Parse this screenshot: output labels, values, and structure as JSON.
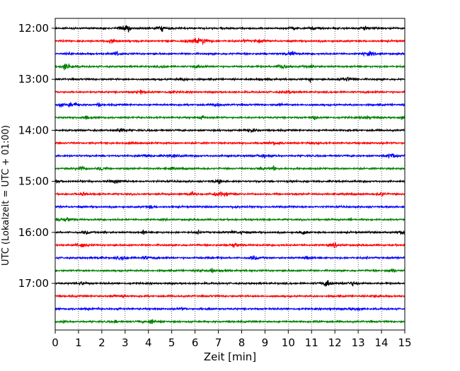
{
  "chart_data": {
    "type": "line",
    "title": "",
    "xlabel": "Zeit  [min]",
    "ylabel": "UTC (Lokalzeit = UTC + 01:00)",
    "xlim": [
      0,
      15
    ],
    "x_ticks": [
      "0",
      "1",
      "2",
      "3",
      "4",
      "5",
      "6",
      "7",
      "8",
      "9",
      "10",
      "11",
      "12",
      "13",
      "14",
      "15"
    ],
    "y_ticks": [
      "12:00",
      "13:00",
      "14:00",
      "15:00",
      "16:00",
      "17:00"
    ],
    "grid": {
      "x": true,
      "y": false,
      "style": "dotted"
    },
    "trace_interval_min": 15,
    "series": [
      {
        "start": "12:00",
        "color": "#000000"
      },
      {
        "start": "12:15",
        "color": "#ff0000"
      },
      {
        "start": "12:30",
        "color": "#0000ff"
      },
      {
        "start": "12:45",
        "color": "#008000"
      },
      {
        "start": "13:00",
        "color": "#000000"
      },
      {
        "start": "13:15",
        "color": "#ff0000"
      },
      {
        "start": "13:30",
        "color": "#0000ff"
      },
      {
        "start": "13:45",
        "color": "#008000"
      },
      {
        "start": "14:00",
        "color": "#000000"
      },
      {
        "start": "14:15",
        "color": "#ff0000"
      },
      {
        "start": "14:30",
        "color": "#0000ff"
      },
      {
        "start": "14:45",
        "color": "#008000"
      },
      {
        "start": "15:00",
        "color": "#000000"
      },
      {
        "start": "15:15",
        "color": "#ff0000"
      },
      {
        "start": "15:30",
        "color": "#0000ff"
      },
      {
        "start": "15:45",
        "color": "#008000"
      },
      {
        "start": "16:00",
        "color": "#000000"
      },
      {
        "start": "16:15",
        "color": "#ff0000"
      },
      {
        "start": "16:30",
        "color": "#0000ff"
      },
      {
        "start": "16:45",
        "color": "#008000"
      },
      {
        "start": "17:00",
        "color": "#000000"
      },
      {
        "start": "17:15",
        "color": "#ff0000"
      },
      {
        "start": "17:30",
        "color": "#0000ff"
      },
      {
        "start": "17:45",
        "color": "#008000"
      }
    ]
  }
}
